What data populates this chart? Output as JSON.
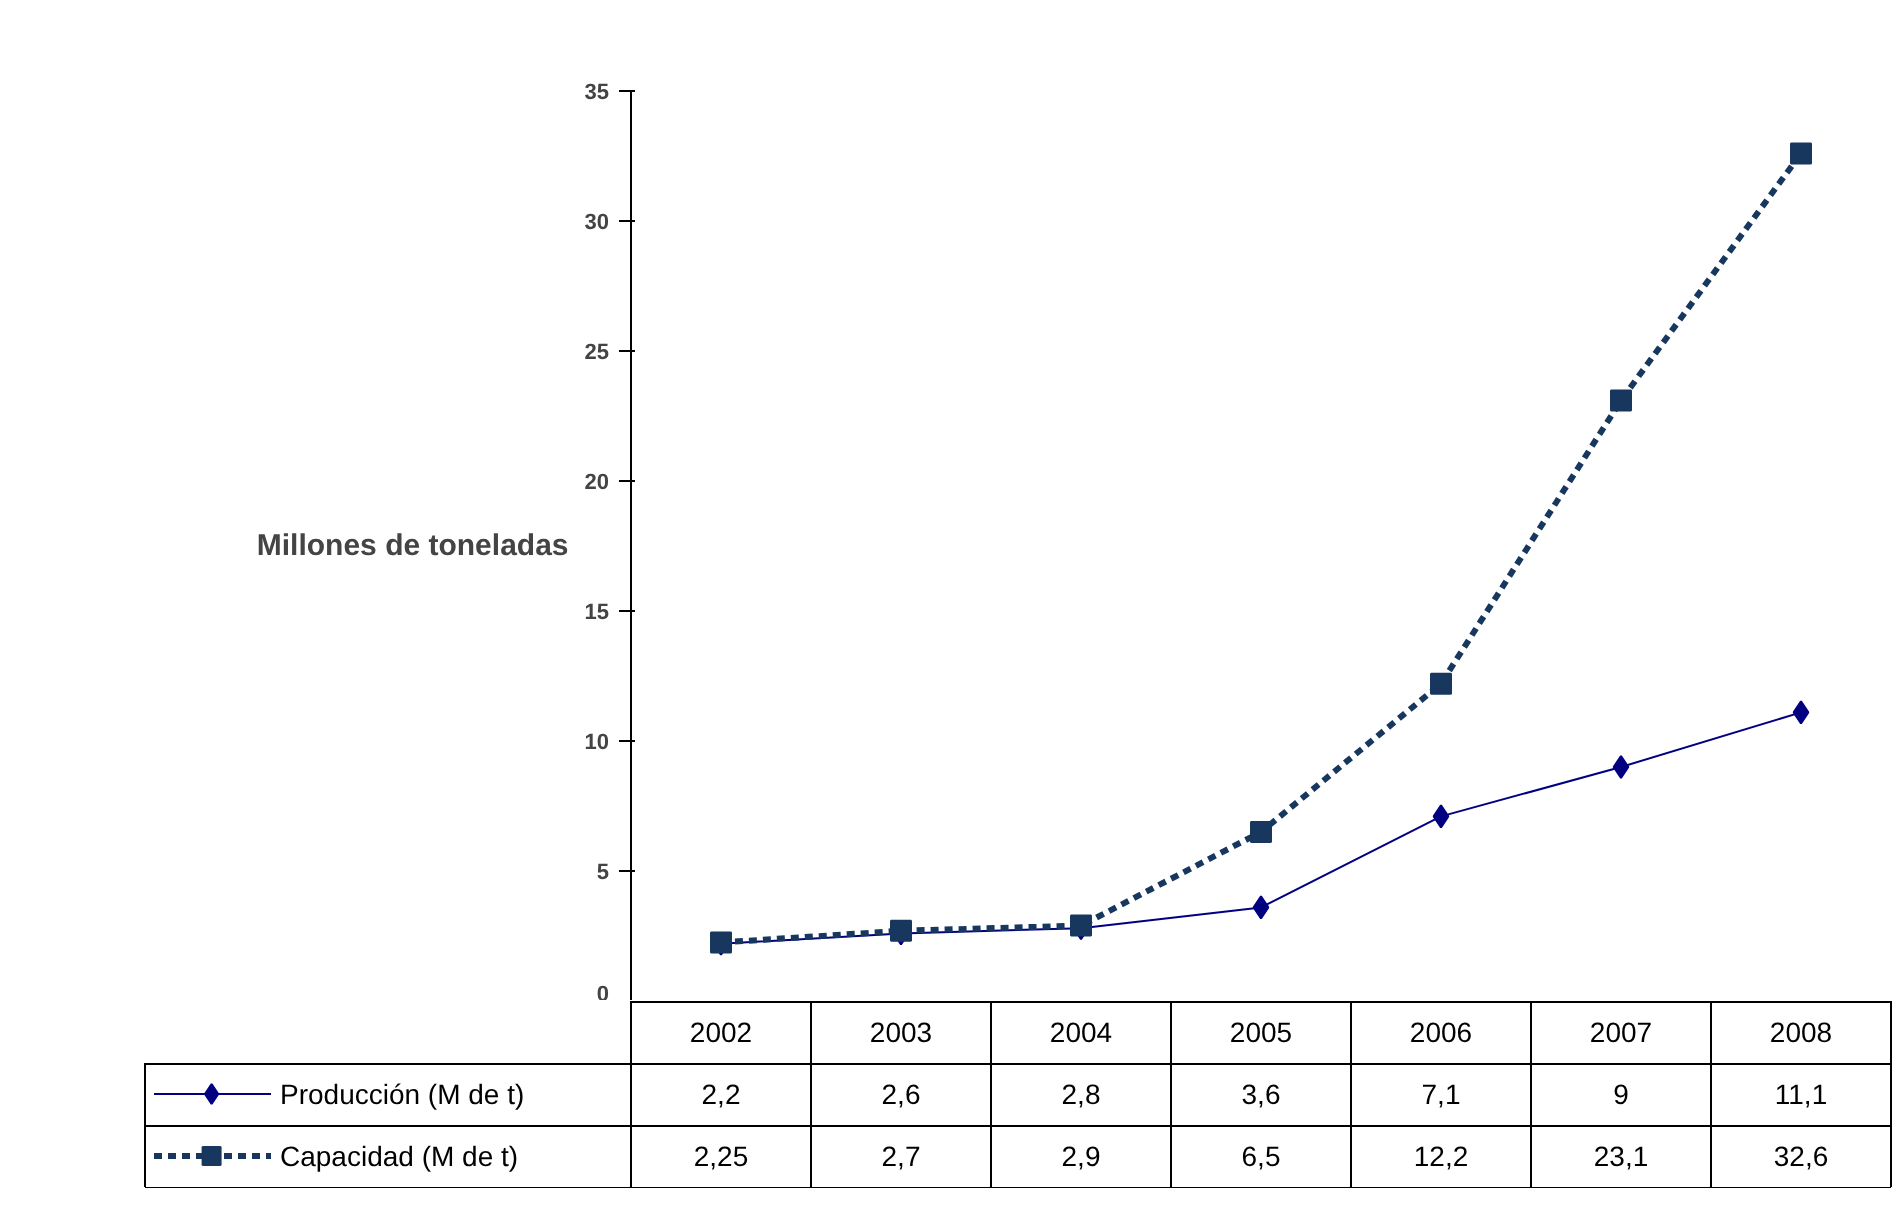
{
  "chart_data": {
    "type": "line",
    "ylabel": "Millones de toneladas",
    "categories": [
      "2002",
      "2003",
      "2004",
      "2005",
      "2006",
      "2007",
      "2008"
    ],
    "series": [
      {
        "name": "Producción (M de t)",
        "color": "#000080",
        "marker": "diamond",
        "line_style": "solid",
        "values": [
          2.2,
          2.6,
          2.8,
          3.6,
          7.1,
          9,
          11.1
        ],
        "value_labels": [
          "2,2",
          "2,6",
          "2,8",
          "3,6",
          "7,1",
          "9",
          "11,1"
        ]
      },
      {
        "name": "Capacidad (M de t)",
        "color": "#17375e",
        "marker": "square",
        "line_style": "dashed",
        "values": [
          2.25,
          2.7,
          2.9,
          6.5,
          12.2,
          23.1,
          32.6
        ],
        "value_labels": [
          "2,25",
          "2,7",
          "2,9",
          "6,5",
          "12,2",
          "23,1",
          "32,6"
        ]
      }
    ],
    "ylim": [
      0,
      35
    ],
    "yticks": [
      0,
      5,
      10,
      15,
      20,
      25,
      30,
      35
    ],
    "grid": false,
    "legend": "bottom"
  }
}
